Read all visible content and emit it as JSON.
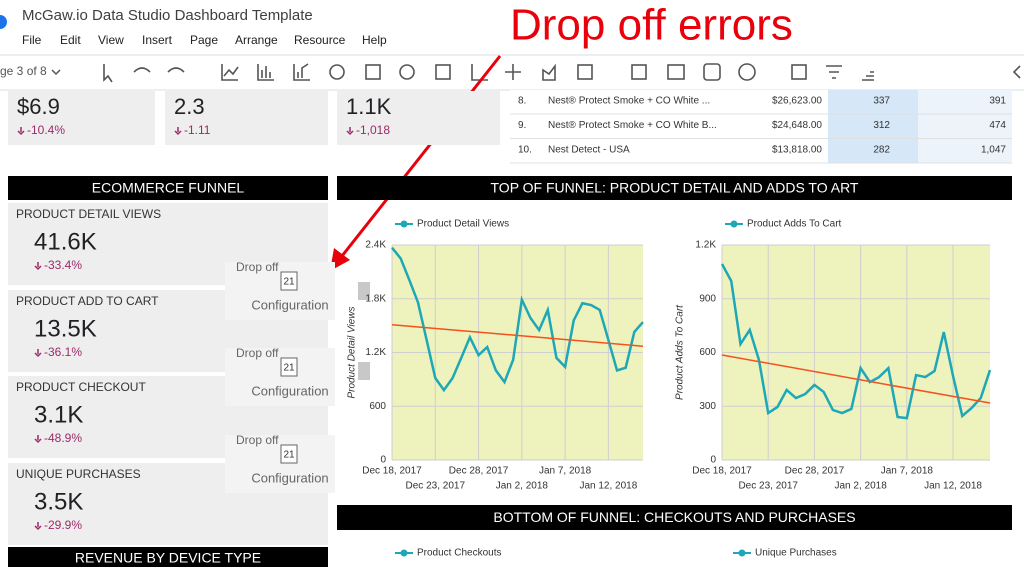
{
  "app": {
    "title": "McGaw.io Data Studio Dashboard Template",
    "menu": [
      "File",
      "Edit",
      "View",
      "Insert",
      "Page",
      "Arrange",
      "Resource",
      "Help"
    ],
    "page_indicator": "ge 3 of 8"
  },
  "annotation": "Drop off errors",
  "scorecards": [
    {
      "value": "$6.9",
      "change": "-10.4%"
    },
    {
      "value": "2.3",
      "change": "-1.11"
    },
    {
      "value": "1.1K",
      "change": "-1,018"
    }
  ],
  "table": {
    "rows": [
      [
        "8.",
        "Nest® Protect Smoke + CO White ...",
        "$26,623.00",
        "337",
        "391"
      ],
      [
        "9.",
        "Nest® Protect Smoke + CO White B...",
        "$24,648.00",
        "312",
        "474"
      ],
      [
        "10.",
        "Nest Detect - USA",
        "$13,818.00",
        "282",
        "1,047"
      ]
    ]
  },
  "funnel": {
    "title": "ECOMMERCE FUNNEL",
    "cards": [
      {
        "label": "PRODUCT DETAIL VIEWS",
        "value": "41.6K",
        "change": "-33.4%"
      },
      {
        "label": "PRODUCT ADD TO CART",
        "value": "13.5K",
        "change": "-36.1%"
      },
      {
        "label": "PRODUCT CHECKOUT",
        "value": "3.1K",
        "change": "-48.9%"
      },
      {
        "label": "UNIQUE PURCHASES",
        "value": "3.5K",
        "change": "-29.9%"
      }
    ]
  },
  "dropoff_widgets": [
    {
      "label": "Drop off",
      "icon": "21",
      "config": "Configuration"
    },
    {
      "label": "Drop off",
      "icon": "21",
      "config": "Configuration"
    },
    {
      "label": "Drop off",
      "icon": "21",
      "config": "Configuration"
    }
  ],
  "top_funnel": {
    "title": "TOP OF FUNNEL: PRODUCT DETAIL AND ADDS TO ART",
    "charts": [
      {
        "type": "line",
        "y_label": "Product Detail Views",
        "background": "#eef2bd",
        "grid": true,
        "x": [
          "2017-12-18",
          "2017-12-19",
          "2017-12-20",
          "2017-12-21",
          "2017-12-22",
          "2017-12-23",
          "2017-12-24",
          "2017-12-25",
          "2017-12-26",
          "2017-12-27",
          "2017-12-28",
          "2017-12-29",
          "2017-12-30",
          "2017-12-31",
          "2018-01-01",
          "2018-01-02",
          "2018-01-03",
          "2018-01-04",
          "2018-01-05",
          "2018-01-06",
          "2018-01-07",
          "2018-01-08",
          "2018-01-09",
          "2018-01-10",
          "2018-01-11",
          "2018-01-12",
          "2018-01-13",
          "2018-01-14",
          "2018-01-15",
          "2018-01-16"
        ],
        "xticks": [
          {
            "value": "2017-12-18",
            "label": "Dec 18, 2017"
          },
          {
            "value": "2017-12-23",
            "label": "Dec 23, 2017"
          },
          {
            "value": "2017-12-28",
            "label": "Dec 28, 2017"
          },
          {
            "value": "2018-01-02",
            "label": "Jan 2, 2018"
          },
          {
            "value": "2018-01-07",
            "label": "Jan 7, 2018"
          },
          {
            "value": "2018-01-12",
            "label": "Jan 12, 2018"
          }
        ],
        "ylim": [
          0,
          2400
        ],
        "yticks": [
          0,
          600,
          {
            "value": 1200,
            "label": "1.2K"
          },
          {
            "value": 1800,
            "label": "1.8K"
          },
          {
            "value": 2400,
            "label": "2.4K"
          }
        ],
        "series": [
          {
            "name": "Product Detail Views",
            "color": "#1ea7b7",
            "values": [
              2370,
              2250,
              2010,
              1760,
              1340,
              915,
              780,
              915,
              1140,
              1370,
              1170,
              1260,
              1000,
              870,
              1120,
              1790,
              1585,
              1450,
              1675,
              1140,
              1040,
              1560,
              1750,
              1730,
              1675,
              1340,
              1000,
              1030,
              1430,
              1540
            ]
          }
        ],
        "trend": [
          1510,
          1270
        ],
        "trend_color": "#f4511e"
      },
      {
        "type": "line",
        "y_label": "Product Adds To Cart",
        "background": "#eef2bd",
        "grid": true,
        "x": [
          "2017-12-18",
          "2017-12-19",
          "2017-12-20",
          "2017-12-21",
          "2017-12-22",
          "2017-12-23",
          "2017-12-24",
          "2017-12-25",
          "2017-12-26",
          "2017-12-27",
          "2017-12-28",
          "2017-12-29",
          "2017-12-30",
          "2017-12-31",
          "2018-01-01",
          "2018-01-02",
          "2018-01-03",
          "2018-01-04",
          "2018-01-05",
          "2018-01-06",
          "2018-01-07",
          "2018-01-08",
          "2018-01-09",
          "2018-01-10",
          "2018-01-11",
          "2018-01-12",
          "2018-01-13",
          "2018-01-14",
          "2018-01-15",
          "2018-01-16"
        ],
        "xticks": [
          {
            "value": "2017-12-18",
            "label": "Dec 18, 2017"
          },
          {
            "value": "2017-12-23",
            "label": "Dec 23, 2017"
          },
          {
            "value": "2017-12-28",
            "label": "Dec 28, 2017"
          },
          {
            "value": "2018-01-02",
            "label": "Jan 2, 2018"
          },
          {
            "value": "2018-01-07",
            "label": "Jan 7, 2018"
          },
          {
            "value": "2018-01-12",
            "label": "Jan 12, 2018"
          }
        ],
        "ylim": [
          0,
          1200
        ],
        "yticks": [
          0,
          300,
          600,
          900,
          {
            "value": 1200,
            "label": "1.2K"
          }
        ],
        "series": [
          {
            "name": "Product Adds To Cart",
            "color": "#1ea7b7",
            "values": [
              1094,
              999,
              647,
              726,
              558,
              262,
              296,
              391,
              346,
              368,
              419,
              380,
              279,
              262,
              285,
              513,
              435,
              463,
              513,
              240,
              234,
              474,
              463,
              497,
              714,
              469,
              246,
              290,
              346,
              502
            ]
          }
        ],
        "trend": [
          586,
          318
        ],
        "trend_color": "#f4511e"
      }
    ]
  },
  "bottom_funnel": {
    "title": "BOTTOM OF FUNNEL: CHECKOUTS AND PURCHASES",
    "legend": [
      "Product Checkouts",
      "Unique Purchases"
    ]
  },
  "revenue": {
    "title": "REVENUE BY DEVICE TYPE"
  }
}
